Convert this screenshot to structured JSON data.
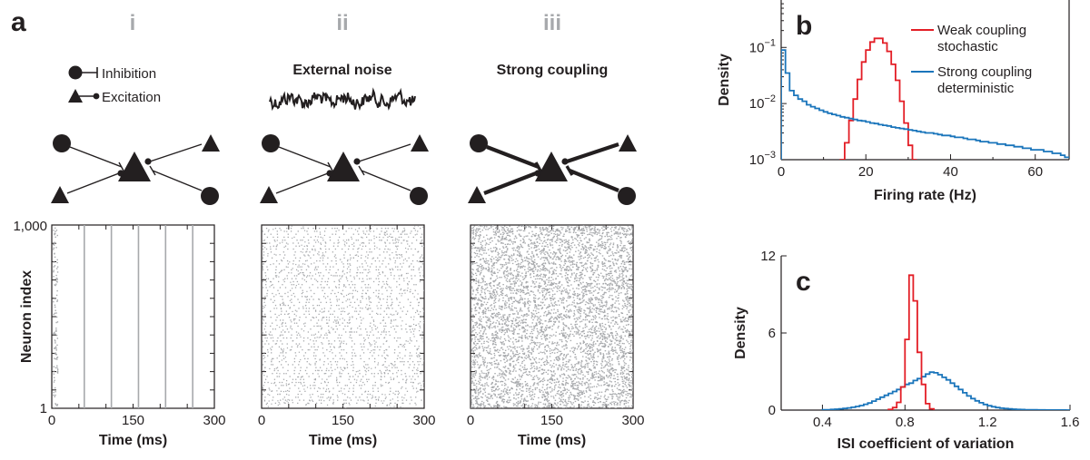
{
  "panel_labels": {
    "a": "a",
    "b": "b",
    "c": "c"
  },
  "columns": [
    {
      "roman": "i",
      "title": ""
    },
    {
      "roman": "ii",
      "title": "External noise"
    },
    {
      "roman": "iii",
      "title": "Strong coupling"
    }
  ],
  "legend_a": {
    "inhibition": "Inhibition",
    "excitation": "Excitation"
  },
  "colors": {
    "red": "#e31e26",
    "blue": "#1a75bb",
    "raster": "#a7a9ac",
    "ink": "#231f20"
  },
  "chart_data": [
    {
      "type": "scatter",
      "panel": "a-i",
      "xlabel": "Time (ms)",
      "ylabel": "Neuron index",
      "xlim": [
        0,
        300
      ],
      "ylim": [
        1,
        1000
      ],
      "x_ticks": [
        "0",
        "150",
        "300"
      ],
      "y_ticks": [
        "1",
        "1,000"
      ],
      "synchronous_event_times_ms": [
        0,
        60,
        110,
        160,
        210,
        260
      ]
    },
    {
      "type": "scatter",
      "panel": "a-ii",
      "xlabel": "Time (ms)",
      "xlim": [
        0,
        300
      ],
      "ylim": [
        1,
        1000
      ],
      "x_ticks": [
        "0",
        "150",
        "300"
      ]
    },
    {
      "type": "scatter",
      "panel": "a-iii",
      "xlabel": "Time (ms)",
      "xlim": [
        0,
        300
      ],
      "ylim": [
        1,
        1000
      ],
      "x_ticks": [
        "0",
        "150",
        "300"
      ]
    },
    {
      "type": "line",
      "panel": "b",
      "xlabel": "Firing rate (Hz)",
      "ylabel": "Density",
      "xlim": [
        0,
        68
      ],
      "ylim": [
        0.001,
        0.7
      ],
      "yscale": "log",
      "x_ticks": [
        "0",
        "20",
        "40",
        "60"
      ],
      "y_ticks": [
        "−3",
        "−2",
        "−1"
      ],
      "legend_position": "top-right",
      "series": [
        {
          "name": "Weak coupling stochastic",
          "color": "#e31e26",
          "bin_width": 1,
          "x": [
            14,
            15,
            16,
            17,
            18,
            19,
            20,
            21,
            22,
            23,
            24,
            25,
            26,
            27,
            28,
            29,
            30,
            31
          ],
          "y": [
            0.001,
            0.002,
            0.005,
            0.012,
            0.027,
            0.055,
            0.09,
            0.125,
            0.145,
            0.145,
            0.12,
            0.085,
            0.05,
            0.026,
            0.011,
            0.0045,
            0.0018,
            0.001
          ]
        },
        {
          "name": "Strong coupling deterministic",
          "color": "#1a75bb",
          "bin_width": 1,
          "x": [
            0,
            1,
            2,
            3,
            4,
            5,
            6,
            7,
            8,
            9,
            10,
            11,
            12,
            13,
            14,
            15,
            16,
            17,
            18,
            19,
            20,
            21,
            22,
            23,
            24,
            25,
            26,
            27,
            28,
            29,
            30,
            31,
            32,
            33,
            34,
            35,
            36,
            37,
            38,
            39,
            40,
            41,
            42,
            43,
            44,
            45,
            46,
            47,
            48,
            49,
            50,
            51,
            52,
            53,
            54,
            55,
            56,
            57,
            58,
            59,
            60,
            61,
            62,
            63,
            64,
            65,
            66,
            67
          ],
          "y": [
            0.09,
            0.035,
            0.017,
            0.014,
            0.012,
            0.011,
            0.0095,
            0.0088,
            0.0082,
            0.0076,
            0.0071,
            0.0067,
            0.0064,
            0.0061,
            0.0058,
            0.0056,
            0.0054,
            0.0052,
            0.005,
            0.0049,
            0.0047,
            0.0045,
            0.0044,
            0.0042,
            0.0041,
            0.004,
            0.0038,
            0.0037,
            0.0036,
            0.0035,
            0.0034,
            0.0033,
            0.0032,
            0.0031,
            0.003,
            0.003,
            0.0029,
            0.0028,
            0.0027,
            0.0027,
            0.0026,
            0.0025,
            0.0025,
            0.0024,
            0.0023,
            0.0023,
            0.0022,
            0.0021,
            0.0021,
            0.002,
            0.002,
            0.0019,
            0.0019,
            0.0018,
            0.0018,
            0.0017,
            0.0017,
            0.0016,
            0.0016,
            0.0015,
            0.0015,
            0.0015,
            0.0014,
            0.0014,
            0.0013,
            0.0013,
            0.0012,
            0.0011
          ]
        }
      ]
    },
    {
      "type": "line",
      "panel": "c",
      "xlabel": "ISI coefficient of variation",
      "ylabel": "Density",
      "xlim": [
        0.2,
        1.6
      ],
      "ylim": [
        0,
        12
      ],
      "x_ticks": [
        "0.4",
        "0.8",
        "1.2",
        "1.6"
      ],
      "y_ticks": [
        "0",
        "6",
        "12"
      ],
      "series": [
        {
          "name": "Weak coupling stochastic",
          "color": "#e31e26",
          "bin_width": 0.02,
          "x": [
            0.72,
            0.74,
            0.76,
            0.78,
            0.8,
            0.82,
            0.84,
            0.86,
            0.88,
            0.9,
            0.92
          ],
          "y": [
            0.05,
            0.2,
            0.6,
            1.8,
            5.5,
            10.5,
            8.5,
            4.5,
            2.0,
            0.5,
            0.1
          ]
        },
        {
          "name": "Strong coupling deterministic",
          "color": "#1a75bb",
          "bin_width": 0.02,
          "x": [
            0.4,
            0.42,
            0.44,
            0.46,
            0.48,
            0.5,
            0.52,
            0.54,
            0.56,
            0.58,
            0.6,
            0.62,
            0.64,
            0.66,
            0.68,
            0.7,
            0.72,
            0.74,
            0.76,
            0.78,
            0.8,
            0.82,
            0.84,
            0.86,
            0.88,
            0.9,
            0.92,
            0.94,
            0.96,
            0.98,
            1.0,
            1.02,
            1.04,
            1.06,
            1.08,
            1.1,
            1.12,
            1.14,
            1.16,
            1.18,
            1.2,
            1.22,
            1.24,
            1.26,
            1.28,
            1.3,
            1.32,
            1.34,
            1.36,
            1.38,
            1.4,
            1.42,
            1.44,
            1.46,
            1.48,
            1.5,
            1.52,
            1.54,
            1.56,
            1.58
          ],
          "y": [
            0.02,
            0.03,
            0.05,
            0.07,
            0.1,
            0.13,
            0.17,
            0.22,
            0.28,
            0.35,
            0.45,
            0.55,
            0.7,
            0.85,
            1.0,
            1.15,
            1.3,
            1.45,
            1.6,
            1.8,
            2.0,
            2.1,
            2.3,
            2.45,
            2.6,
            2.8,
            2.95,
            2.9,
            2.75,
            2.55,
            2.35,
            2.1,
            1.85,
            1.6,
            1.35,
            1.1,
            0.9,
            0.72,
            0.57,
            0.44,
            0.34,
            0.26,
            0.2,
            0.15,
            0.12,
            0.09,
            0.07,
            0.05,
            0.04,
            0.03,
            0.025,
            0.02,
            0.015,
            0.012,
            0.01,
            0.008,
            0.006,
            0.005,
            0.004,
            0.003
          ]
        }
      ]
    }
  ]
}
